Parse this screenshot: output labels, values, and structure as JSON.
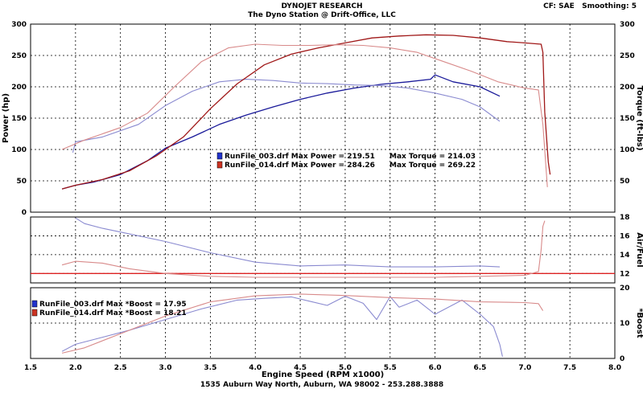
{
  "header": {
    "title": "DYNOJET RESEARCH",
    "subtitle": "The Dyno Station @ Drift-Office, LLC",
    "settings": "CF: SAE   Smoothing: 5"
  },
  "footer": "1535 Auburn Way North, Auburn, WA 98002 - 253.288.3888",
  "chart_data": [
    {
      "type": "line",
      "panel": "power-torque",
      "xlabel": "Engine Speed (RPM x1000)",
      "ylabel_left": "Power (hp)",
      "ylabel_right": "Torque (ft-lbs)",
      "xlim": [
        1.5,
        8.0
      ],
      "ylim": [
        0,
        300
      ],
      "yticks": [
        50,
        100,
        150,
        200,
        250,
        300
      ],
      "grid": true,
      "colors": {
        "run003": "#1a1a9a",
        "run014": "#a01818"
      },
      "legend": [
        {
          "file": "RunFile_003.drf",
          "power": "Max Power = 219.51",
          "torque": "Max Torque = 214.03",
          "color": "#2233cc"
        },
        {
          "file": "RunFile_014.drf",
          "power": "Max Power = 284.26",
          "torque": "Max Torque = 269.22",
          "color": "#cc3322"
        }
      ],
      "series": [
        {
          "name": "RunFile_003.drf",
          "measure": "power",
          "color": "#1a1a9a",
          "dark": true,
          "x": [
            1.85,
            2.0,
            2.2,
            2.5,
            2.8,
            3.0,
            3.3,
            3.6,
            3.9,
            4.2,
            4.5,
            4.8,
            5.1,
            5.4,
            5.7,
            5.95,
            6.0,
            6.2,
            6.5,
            6.72
          ],
          "y": [
            37,
            43,
            48,
            60,
            82,
            102,
            120,
            140,
            155,
            168,
            180,
            190,
            198,
            204,
            208,
            212,
            219,
            208,
            200,
            185
          ]
        },
        {
          "name": "RunFile_003.drf",
          "measure": "torque",
          "color": "#8a8ad0",
          "dark": false,
          "x": [
            1.97,
            2.0,
            2.3,
            2.7,
            3.0,
            3.3,
            3.6,
            3.9,
            4.2,
            4.5,
            4.8,
            5.1,
            5.4,
            5.7,
            6.0,
            6.3,
            6.5,
            6.72
          ],
          "y": [
            95,
            112,
            120,
            140,
            170,
            193,
            208,
            212,
            210,
            206,
            205,
            203,
            202,
            198,
            190,
            180,
            168,
            145
          ]
        },
        {
          "name": "RunFile_014.drf",
          "measure": "power",
          "color": "#a01818",
          "dark": true,
          "x": [
            1.85,
            2.0,
            2.3,
            2.6,
            2.9,
            3.2,
            3.5,
            3.8,
            4.1,
            4.4,
            4.7,
            5.0,
            5.3,
            5.6,
            5.9,
            6.2,
            6.5,
            6.8,
            7.0,
            7.18,
            7.2,
            7.22,
            7.26,
            7.28
          ],
          "y": [
            37,
            43,
            52,
            66,
            90,
            120,
            165,
            205,
            235,
            252,
            262,
            270,
            278,
            281,
            283,
            282,
            278,
            272,
            270,
            268,
            255,
            160,
            80,
            60
          ]
        },
        {
          "name": "RunFile_014.drf",
          "measure": "torque",
          "color": "#d88a8a",
          "dark": false,
          "x": [
            1.85,
            2.1,
            2.5,
            2.8,
            3.1,
            3.4,
            3.7,
            4.0,
            4.3,
            4.6,
            4.9,
            5.2,
            5.5,
            5.8,
            6.1,
            6.4,
            6.7,
            7.0,
            7.15,
            7.2,
            7.25
          ],
          "y": [
            100,
            115,
            135,
            158,
            200,
            240,
            262,
            268,
            266,
            266,
            267,
            266,
            262,
            255,
            240,
            225,
            208,
            198,
            195,
            140,
            40
          ]
        }
      ]
    },
    {
      "type": "line",
      "panel": "air-fuel",
      "ylabel_right": "Air/Fuel",
      "xlim": [
        1.5,
        8.0
      ],
      "ylim": [
        11,
        18
      ],
      "yticks": [
        12,
        14,
        16,
        18
      ],
      "reference_line": 12,
      "series": [
        {
          "name": "RunFile_003.drf",
          "color": "#8a8ad0",
          "x": [
            2.0,
            2.1,
            2.3,
            2.6,
            3.0,
            3.5,
            4.0,
            4.5,
            5.0,
            5.5,
            6.0,
            6.5,
            6.72
          ],
          "y": [
            17.9,
            17.3,
            16.8,
            16.2,
            15.4,
            14.2,
            13.2,
            12.8,
            12.9,
            12.7,
            12.7,
            12.8,
            12.7
          ]
        },
        {
          "name": "RunFile_014.drf",
          "color": "#d88a8a",
          "x": [
            1.85,
            2.0,
            2.3,
            2.6,
            3.0,
            3.5,
            4.0,
            4.5,
            5.0,
            5.5,
            6.0,
            6.5,
            7.0,
            7.15,
            7.18,
            7.2,
            7.22
          ],
          "y": [
            12.9,
            13.3,
            13.1,
            12.5,
            12.0,
            11.7,
            11.6,
            11.6,
            11.6,
            11.6,
            11.6,
            11.7,
            11.8,
            12.2,
            14.5,
            17.0,
            17.6
          ]
        }
      ]
    },
    {
      "type": "line",
      "panel": "boost",
      "ylabel_right": "*Boost",
      "xlim": [
        1.5,
        8.0
      ],
      "ylim": [
        0,
        20
      ],
      "yticks": [
        0,
        10,
        20
      ],
      "legend": [
        {
          "file": "RunFile_003.drf",
          "value": "Max *Boost = 17.95",
          "color": "#2233cc"
        },
        {
          "file": "RunFile_014.drf",
          "value": "Max *Boost = 18.21",
          "color": "#cc3322"
        }
      ],
      "series": [
        {
          "name": "RunFile_003.drf",
          "color": "#8a8ad0",
          "x": [
            1.85,
            2.0,
            2.3,
            2.6,
            3.0,
            3.4,
            3.8,
            4.1,
            4.4,
            4.6,
            4.8,
            5.0,
            5.2,
            5.35,
            5.5,
            5.6,
            5.8,
            6.0,
            6.3,
            6.5,
            6.65,
            6.72,
            6.75
          ],
          "y": [
            2,
            4,
            6,
            8,
            11,
            14,
            16.5,
            17,
            17.4,
            16.2,
            15.0,
            17.6,
            15.6,
            11,
            17.5,
            14.5,
            16.5,
            12.5,
            16.5,
            12.5,
            9,
            4,
            0.5
          ]
        },
        {
          "name": "RunFile_014.drf",
          "color": "#d88a8a",
          "x": [
            1.85,
            2.1,
            2.5,
            3.0,
            3.5,
            4.0,
            4.5,
            5.0,
            5.5,
            6.0,
            6.5,
            7.0,
            7.15,
            7.2
          ],
          "y": [
            1.5,
            3,
            7,
            12,
            16,
            17.7,
            18.2,
            17.8,
            17.2,
            16.8,
            16.0,
            15.8,
            15.5,
            13.5
          ]
        }
      ]
    }
  ],
  "x_ticks": [
    "1.5",
    "2.0",
    "2.5",
    "3.0",
    "3.5",
    "4.0",
    "4.5",
    "5.0",
    "5.5",
    "6.0",
    "6.5",
    "7.0",
    "7.5",
    "8.0"
  ]
}
